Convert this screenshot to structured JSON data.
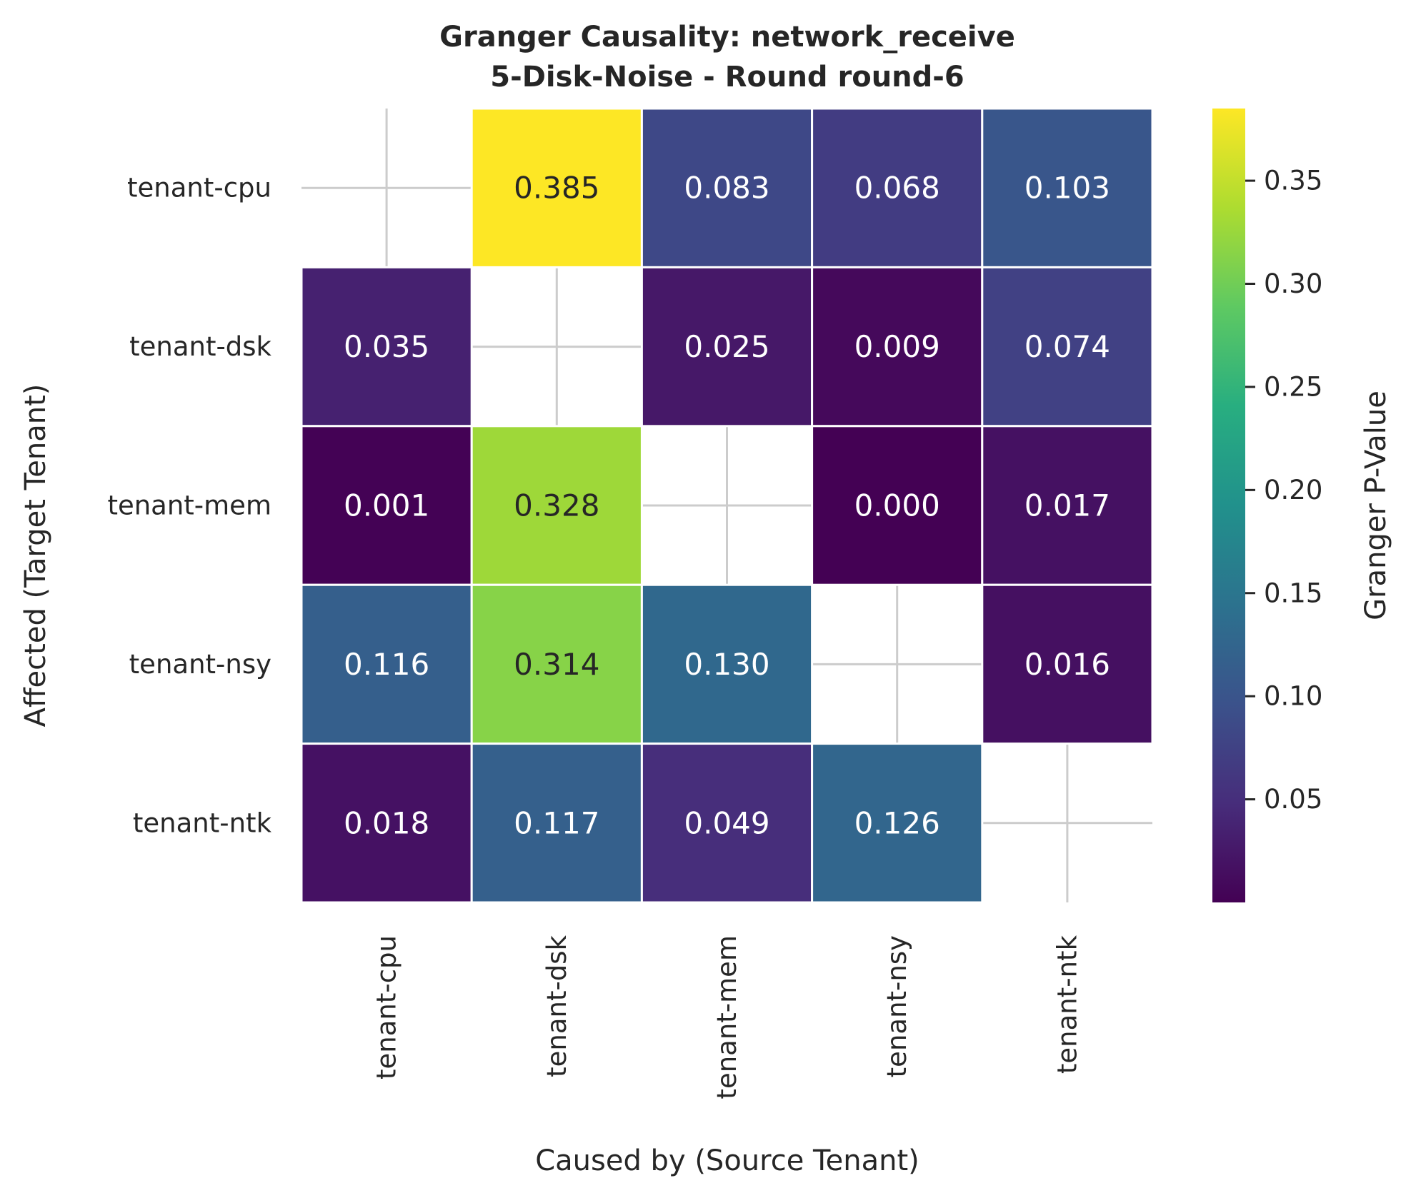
{
  "chart_data": {
    "type": "heatmap",
    "title_lines": [
      "Granger Causality: network_receive",
      "5-Disk-Noise - Round round-6"
    ],
    "xlabel": "Caused by (Source Tenant)",
    "ylabel": "Affected (Target Tenant)",
    "x_categories": [
      "tenant-cpu",
      "tenant-dsk",
      "tenant-mem",
      "tenant-nsy",
      "tenant-ntk"
    ],
    "y_categories": [
      "tenant-cpu",
      "tenant-dsk",
      "tenant-mem",
      "tenant-nsy",
      "tenant-ntk"
    ],
    "values": [
      [
        null,
        0.385,
        0.083,
        0.068,
        0.103
      ],
      [
        0.035,
        null,
        0.025,
        0.009,
        0.074
      ],
      [
        0.001,
        0.328,
        null,
        0.0,
        0.017
      ],
      [
        0.116,
        0.314,
        0.13,
        null,
        0.016
      ],
      [
        0.018,
        0.117,
        0.049,
        0.126,
        null
      ]
    ],
    "value_labels": [
      [
        "",
        "0.385",
        "0.083",
        "0.068",
        "0.103"
      ],
      [
        "0.035",
        "",
        "0.025",
        "0.009",
        "0.074"
      ],
      [
        "0.001",
        "0.328",
        "",
        "0.000",
        "0.017"
      ],
      [
        "0.116",
        "0.314",
        "0.130",
        "",
        "0.016"
      ],
      [
        "0.018",
        "0.117",
        "0.049",
        "0.126",
        ""
      ]
    ],
    "colormap": "viridis",
    "colorbar": {
      "label": "Granger P-Value",
      "vmin": 0.0,
      "vmax": 0.385,
      "ticks": [
        0.05,
        0.1,
        0.15,
        0.2,
        0.25,
        0.3,
        0.35
      ],
      "tick_labels": [
        "0.05",
        "0.10",
        "0.15",
        "0.20",
        "0.25",
        "0.30",
        "0.35"
      ]
    },
    "grid": true
  }
}
